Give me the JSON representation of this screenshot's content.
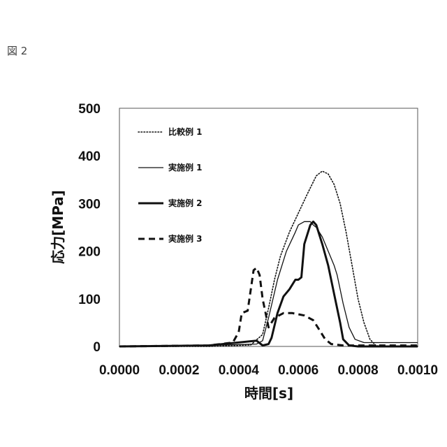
{
  "figure_label": "図 2",
  "chart_data": {
    "type": "line",
    "title": "",
    "xlabel": "時間[s]",
    "ylabel": "応力[MPa]",
    "xlim": [
      0.0,
      0.001
    ],
    "ylim": [
      0,
      500
    ],
    "x_ticks": [
      "0.0000",
      "0.0002",
      "0.0004",
      "0.0006",
      "0.0008",
      "0.0010"
    ],
    "y_ticks": [
      "0",
      "100",
      "200",
      "300",
      "400",
      "500"
    ],
    "grid": false,
    "legend_position": "top-left",
    "series": [
      {
        "name": "比較例 1",
        "style": "dotted",
        "points": [
          [
            0.0,
            0
          ],
          [
            0.0003,
            0
          ],
          [
            0.00044,
            3
          ],
          [
            0.00048,
            25
          ],
          [
            0.0005,
            80
          ],
          [
            0.00052,
            140
          ],
          [
            0.00054,
            190
          ],
          [
            0.00057,
            240
          ],
          [
            0.0006,
            280
          ],
          [
            0.00063,
            320
          ],
          [
            0.00066,
            358
          ],
          [
            0.00068,
            368
          ],
          [
            0.0007,
            362
          ],
          [
            0.00072,
            340
          ],
          [
            0.00074,
            300
          ],
          [
            0.00076,
            240
          ],
          [
            0.00078,
            170
          ],
          [
            0.0008,
            100
          ],
          [
            0.00082,
            50
          ],
          [
            0.00084,
            15
          ],
          [
            0.00086,
            2
          ],
          [
            0.00088,
            0
          ],
          [
            0.001,
            0
          ]
        ]
      },
      {
        "name": "実施例 1",
        "style": "thin-solid",
        "points": [
          [
            0.0,
            0
          ],
          [
            0.0003,
            2
          ],
          [
            0.00046,
            5
          ],
          [
            0.00048,
            12
          ],
          [
            0.0005,
            60
          ],
          [
            0.00053,
            140
          ],
          [
            0.00056,
            200
          ],
          [
            0.00059,
            240
          ],
          [
            0.0006,
            255
          ],
          [
            0.00062,
            262
          ],
          [
            0.00064,
            262
          ],
          [
            0.00065,
            255
          ],
          [
            0.00066,
            250
          ],
          [
            0.00068,
            230
          ],
          [
            0.0007,
            200
          ],
          [
            0.00072,
            170
          ],
          [
            0.00073,
            150
          ],
          [
            0.00075,
            90
          ],
          [
            0.00077,
            40
          ],
          [
            0.00079,
            15
          ],
          [
            0.00082,
            8
          ],
          [
            0.0009,
            8
          ],
          [
            0.001,
            8
          ]
        ]
      },
      {
        "name": "実施例 2",
        "style": "thick-solid",
        "points": [
          [
            0.0,
            0
          ],
          [
            0.0003,
            2
          ],
          [
            0.00046,
            12
          ],
          [
            0.00048,
            2
          ],
          [
            0.0005,
            5
          ],
          [
            0.00051,
            18
          ],
          [
            0.00053,
            70
          ],
          [
            0.00055,
            105
          ],
          [
            0.00057,
            120
          ],
          [
            0.00059,
            140
          ],
          [
            0.0006,
            140
          ],
          [
            0.00061,
            145
          ],
          [
            0.00062,
            215
          ],
          [
            0.00064,
            255
          ],
          [
            0.00065,
            262
          ],
          [
            0.00066,
            255
          ],
          [
            0.00068,
            215
          ],
          [
            0.0007,
            170
          ],
          [
            0.00072,
            110
          ],
          [
            0.00074,
            50
          ],
          [
            0.00075,
            15
          ],
          [
            0.00077,
            2
          ],
          [
            0.0008,
            0
          ],
          [
            0.001,
            0
          ]
        ]
      },
      {
        "name": "実施例 3",
        "style": "dashed",
        "points": [
          [
            0.0,
            0
          ],
          [
            0.0003,
            2
          ],
          [
            0.00038,
            8
          ],
          [
            0.0004,
            30
          ],
          [
            0.00041,
            70
          ],
          [
            0.00043,
            75
          ],
          [
            0.00045,
            160
          ],
          [
            0.00046,
            165
          ],
          [
            0.00047,
            150
          ],
          [
            0.00048,
            100
          ],
          [
            0.0005,
            40
          ],
          [
            0.00052,
            60
          ],
          [
            0.00055,
            70
          ],
          [
            0.00058,
            70
          ],
          [
            0.00062,
            65
          ],
          [
            0.00065,
            55
          ],
          [
            0.00067,
            35
          ],
          [
            0.00069,
            15
          ],
          [
            0.00071,
            5
          ],
          [
            0.00075,
            2
          ],
          [
            0.001,
            2
          ]
        ]
      }
    ]
  }
}
